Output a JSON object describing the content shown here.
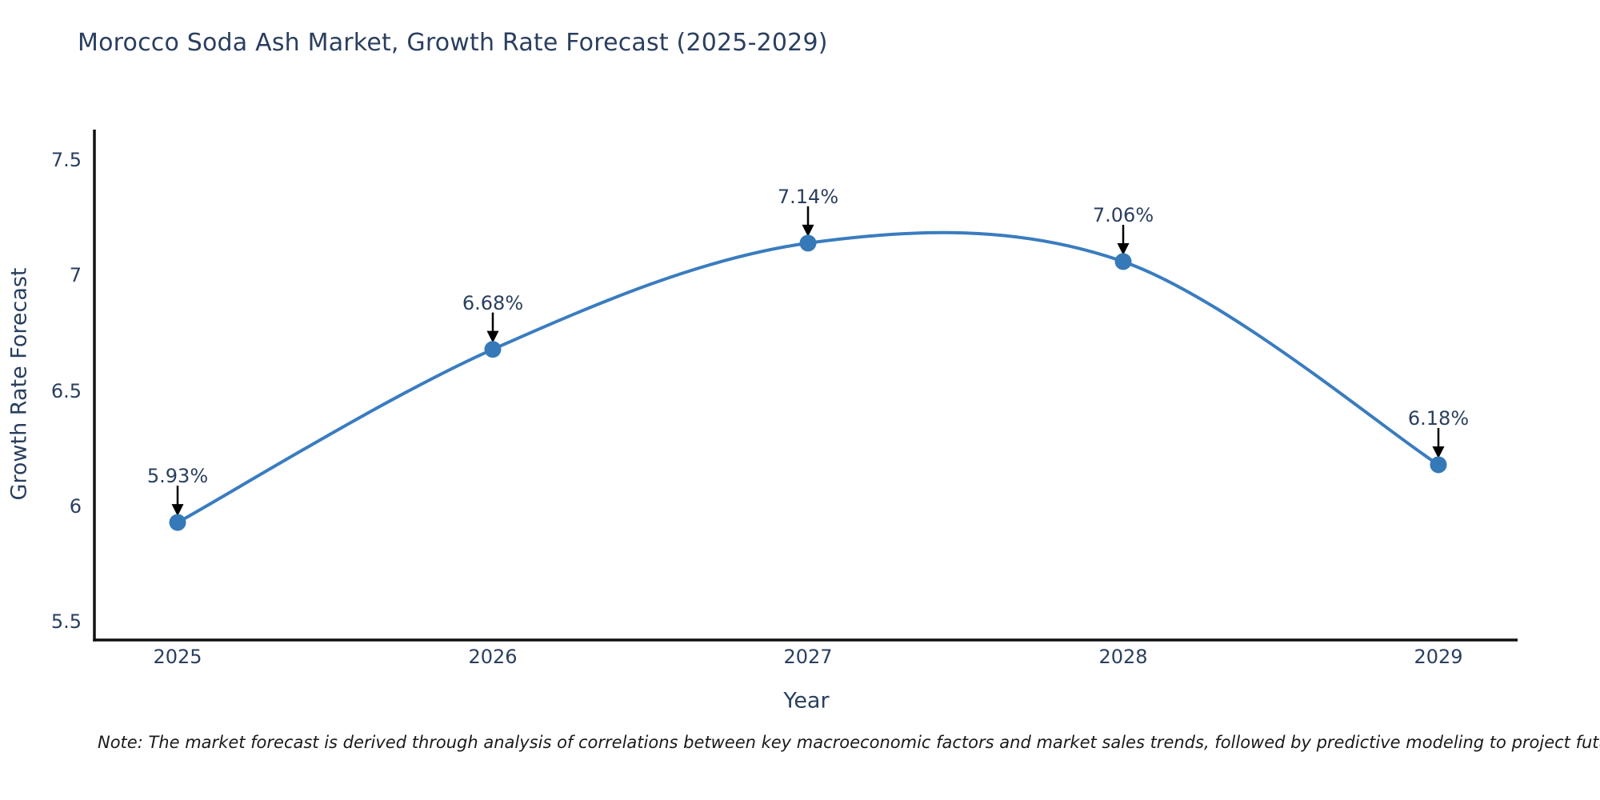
{
  "title": "Morocco Soda Ash Market, Growth Rate Forecast (2025-2029)",
  "note": "Note: The market forecast is derived through analysis of correlations between key macroeconomic factors and market sales trends, followed by predictive modeling to project future sales",
  "chart_data": {
    "type": "line",
    "title": "Morocco Soda Ash Market, Growth Rate Forecast (2025-2029)",
    "xlabel": "Year",
    "ylabel": "Growth Rate Forecast",
    "x": [
      2025,
      2026,
      2027,
      2028,
      2029
    ],
    "y": [
      5.93,
      6.68,
      7.14,
      7.06,
      6.18
    ],
    "point_labels": [
      "5.93%",
      "6.68%",
      "7.14%",
      "7.06%",
      "6.18%"
    ],
    "xtick_labels": [
      "2025",
      "2026",
      "2027",
      "2028",
      "2029"
    ],
    "ytick_values": [
      7.5,
      7.0,
      6.5,
      6.0,
      5.5
    ],
    "ytick_labels": [
      "7.5",
      "7",
      "6.5",
      "6",
      "5.5"
    ],
    "ylim": [
      5.42,
      7.63
    ],
    "grid": false,
    "legend": false,
    "line_color": "#3a7cbf",
    "marker_color": "#3579b8",
    "axis_color": "#111111",
    "annotation_arrow_color": "#000000",
    "smooth": true
  },
  "colors": {
    "title_text": "#2a3f5f",
    "tick_text": "#2a3f5f",
    "note_text": "#1a1a1a"
  }
}
